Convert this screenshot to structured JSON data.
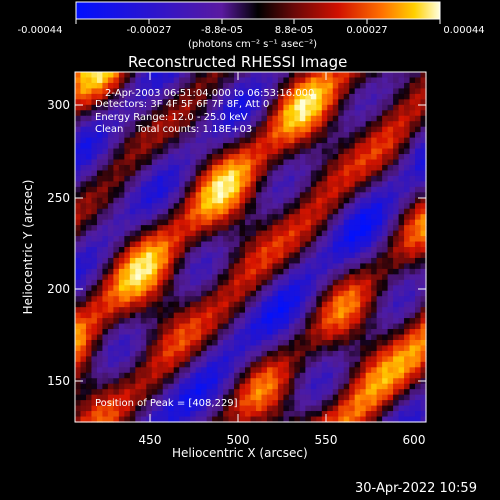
{
  "colorbar": {
    "ticks": [
      "-0.00044",
      "-0.00027",
      "-8.8e-05",
      "8.8e-05",
      "0.00027",
      "0.00044"
    ],
    "unit_label": "(photons cm⁻² s⁻¹ asec⁻²)"
  },
  "plot": {
    "title": "Reconstructed RHESSI Image",
    "xlabel": "Heliocentric X (arcsec)",
    "ylabel": "Heliocentric Y (arcsec)",
    "xticks": [
      "450",
      "500",
      "550",
      "600"
    ],
    "yticks": [
      "300",
      "250",
      "200",
      "150"
    ]
  },
  "annotations": {
    "time_range": "2-Apr-2003 06:51:04.000 to 06:53:16.000",
    "detectors": "Detectors: 3F 4F 5F 6F 7F 8F, Att 0",
    "energy": "Energy Range: 12.0 - 25.0 keV",
    "clean": "Clean    Total counts: 1.18E+03",
    "peak": "Position of Peak = [408,229]"
  },
  "footer": {
    "timestamp": "30-Apr-2022 10:59"
  },
  "colors": {
    "background": "#000000",
    "foreground": "#ffffff",
    "colormap": [
      "#0000ff",
      "#3010c0",
      "#5a1fa0",
      "#000000",
      "#7a0c0c",
      "#e01000",
      "#ff7a00",
      "#ffd400",
      "#ffffd0"
    ]
  }
}
